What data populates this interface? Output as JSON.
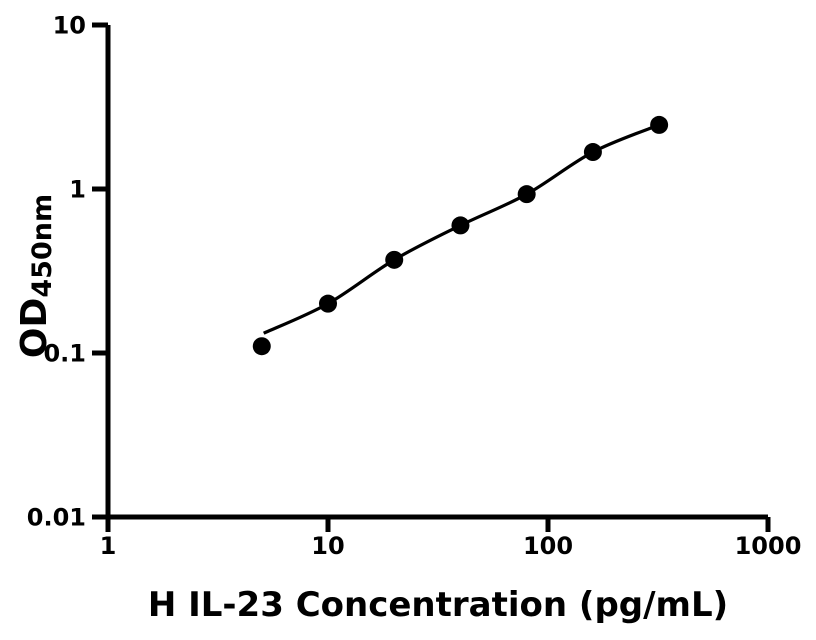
{
  "figure": {
    "background_color": "#ffffff"
  },
  "chart_data": {
    "type": "scatter",
    "title": "",
    "xlabel": "H IL-23 Concentration (pg/mL)",
    "ylabel_main": "OD",
    "ylabel_sub": "450nm",
    "x_scale": "log",
    "y_scale": "log",
    "xlim": [
      1,
      1000
    ],
    "ylim": [
      0.01,
      10
    ],
    "grid": false,
    "legend": false,
    "axis_color": "#000000",
    "x_ticks": [
      {
        "value": 1,
        "label": "1"
      },
      {
        "value": 10,
        "label": "10"
      },
      {
        "value": 100,
        "label": "100"
      },
      {
        "value": 1000,
        "label": "1000"
      }
    ],
    "y_ticks": [
      {
        "value": 10,
        "label": "10"
      },
      {
        "value": 1,
        "label": "1"
      },
      {
        "value": 0.1,
        "label": "0.1"
      },
      {
        "value": 0.01,
        "label": "0.01"
      }
    ],
    "series": [
      {
        "name": "standard-points",
        "marker": "circle",
        "marker_radius": 9,
        "color": "#000000",
        "x": [
          5,
          10,
          20,
          40,
          80,
          160,
          320
        ],
        "od": [
          0.11,
          0.2,
          0.37,
          0.6,
          0.93,
          1.68,
          2.46
        ]
      }
    ],
    "fit_curve": {
      "color": "#000000",
      "points": [
        {
          "x": 5.1,
          "od": 0.132
        },
        {
          "x": 10,
          "od": 0.2
        },
        {
          "x": 20,
          "od": 0.37
        },
        {
          "x": 40,
          "od": 0.6
        },
        {
          "x": 80,
          "od": 0.93
        },
        {
          "x": 160,
          "od": 1.68
        },
        {
          "x": 320,
          "od": 2.46
        }
      ]
    }
  }
}
